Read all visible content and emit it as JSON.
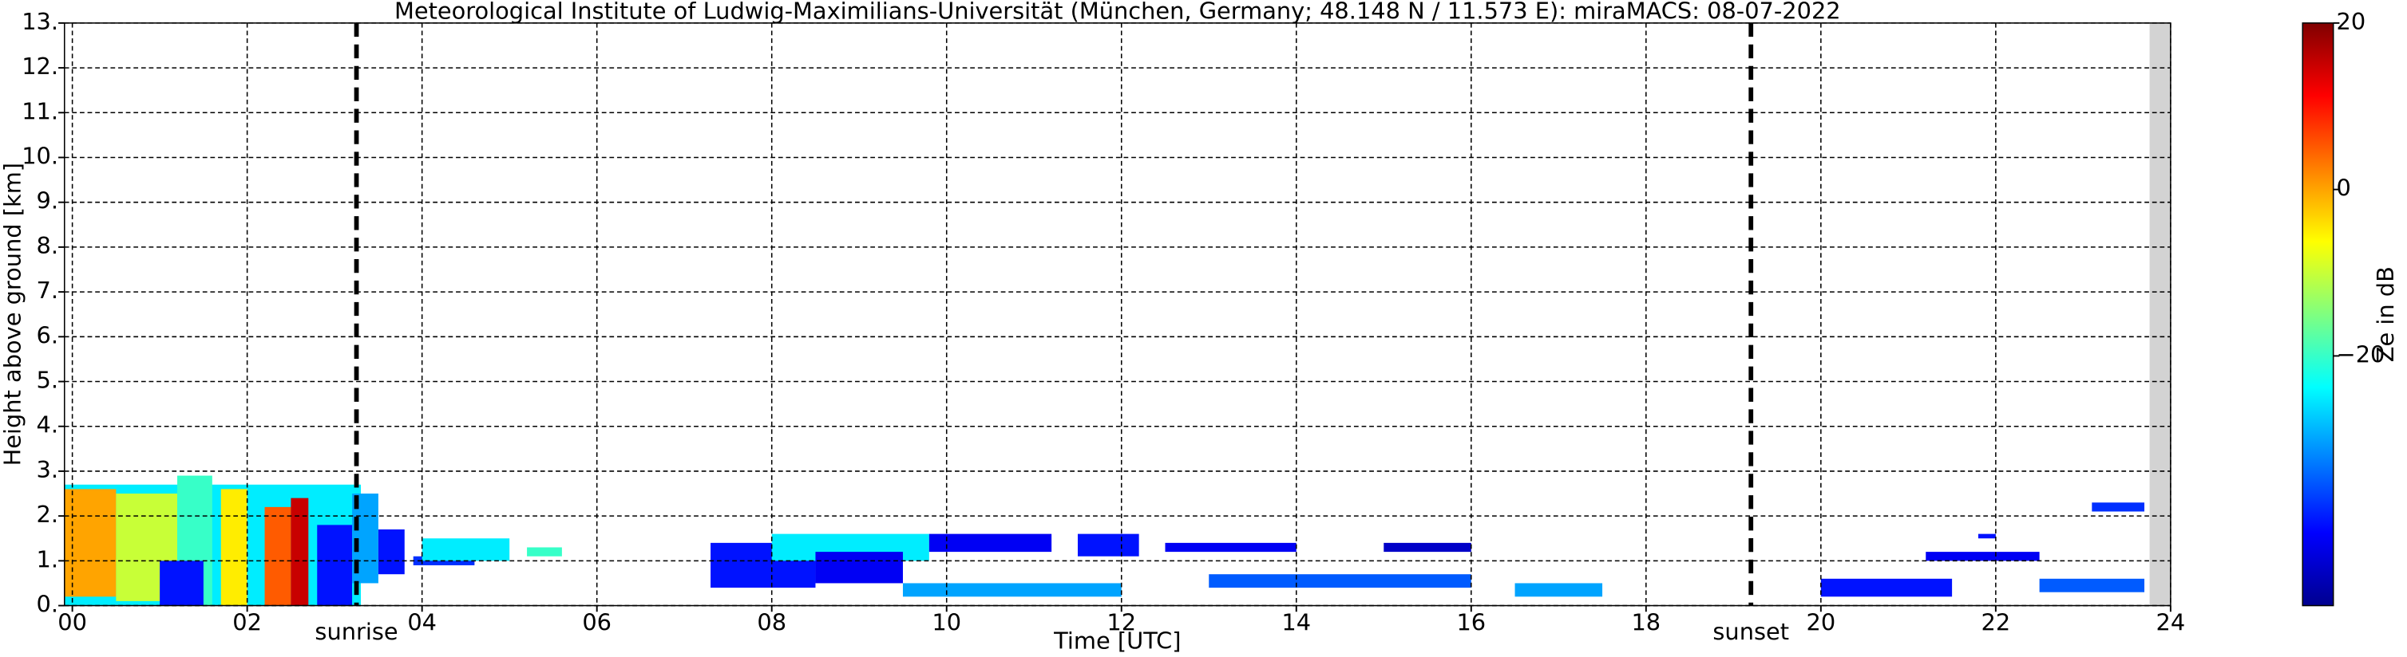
{
  "chart_data": {
    "type": "time-height",
    "title": "Meteorological Institute of Ludwig-Maximilians-Universität (München, Germany; 48.148 N / 11.573 E):    miraMACS: 08-07-2022",
    "x_label": "Time [UTC]",
    "y_label": "Height above ground [km]",
    "colorbar_label": "Ze in dB",
    "colormap": "jet",
    "grid": true,
    "xlim": [
      -0.09,
      24
    ],
    "ylim": [
      0,
      13
    ],
    "clim": [
      -50,
      20
    ],
    "xticks": [
      {
        "value": 0,
        "label": "00"
      },
      {
        "value": 2,
        "label": "02"
      },
      {
        "value": 4,
        "label": "04"
      },
      {
        "value": 6,
        "label": "06"
      },
      {
        "value": 8,
        "label": "08"
      },
      {
        "value": 10,
        "label": "10"
      },
      {
        "value": 12,
        "label": "12"
      },
      {
        "value": 14,
        "label": "14"
      },
      {
        "value": 16,
        "label": "16"
      },
      {
        "value": 18,
        "label": "18"
      },
      {
        "value": 20,
        "label": "20"
      },
      {
        "value": 22,
        "label": "22"
      },
      {
        "value": 24,
        "label": "24"
      }
    ],
    "yticks": [
      {
        "value": 0,
        "label": "0."
      },
      {
        "value": 1,
        "label": "1."
      },
      {
        "value": 2,
        "label": "2."
      },
      {
        "value": 3,
        "label": "3."
      },
      {
        "value": 4,
        "label": "4."
      },
      {
        "value": 5,
        "label": "5."
      },
      {
        "value": 6,
        "label": "6."
      },
      {
        "value": 7,
        "label": "7."
      },
      {
        "value": 8,
        "label": "8."
      },
      {
        "value": 9,
        "label": "9."
      },
      {
        "value": 10,
        "label": "10."
      },
      {
        "value": 11,
        "label": "11."
      },
      {
        "value": 12,
        "label": "12."
      },
      {
        "value": 13,
        "label": "13."
      }
    ],
    "cticks": [
      20,
      0,
      {
        "value": -20,
        "label": "−20"
      }
    ],
    "annotations": [
      {
        "label": "sunrise",
        "x": 3.25
      },
      {
        "label": "sunset",
        "x": 19.2
      }
    ],
    "no_data_x": [
      23.76,
      24
    ],
    "echoes": [
      {
        "t0": -0.09,
        "t1": 3.3,
        "h0": 0,
        "h1": 2.7,
        "ze": -25
      },
      {
        "t0": -0.09,
        "t1": 0.5,
        "h0": 0.2,
        "h1": 2.6,
        "ze": 0
      },
      {
        "t0": 0.5,
        "t1": 1.2,
        "h0": 0.1,
        "h1": 2.5,
        "ze": -10
      },
      {
        "t0": 1.2,
        "t1": 1.6,
        "h0": 0,
        "h1": 2.9,
        "ze": -20
      },
      {
        "t0": 1.0,
        "t1": 1.5,
        "h0": 0,
        "h1": 1.0,
        "ze": -40
      },
      {
        "t0": 1.7,
        "t1": 2.0,
        "h0": 0,
        "h1": 2.6,
        "ze": -5
      },
      {
        "t0": 2.2,
        "t1": 2.5,
        "h0": 0,
        "h1": 2.2,
        "ze": 5
      },
      {
        "t0": 2.5,
        "t1": 2.7,
        "h0": 0,
        "h1": 2.4,
        "ze": 15
      },
      {
        "t0": 2.8,
        "t1": 3.2,
        "h0": 0,
        "h1": 1.8,
        "ze": -40
      },
      {
        "t0": 3.2,
        "t1": 3.5,
        "h0": 0.5,
        "h1": 2.5,
        "ze": -30
      },
      {
        "t0": 3.5,
        "t1": 3.8,
        "h0": 0.7,
        "h1": 1.7,
        "ze": -40
      },
      {
        "t0": 3.9,
        "t1": 4.6,
        "h0": 0.9,
        "h1": 1.1,
        "ze": -38
      },
      {
        "t0": 4.0,
        "t1": 5.0,
        "h0": 1.0,
        "h1": 1.5,
        "ze": -25
      },
      {
        "t0": 5.2,
        "t1": 5.6,
        "h0": 1.1,
        "h1": 1.3,
        "ze": -20
      },
      {
        "t0": 7.3,
        "t1": 8.5,
        "h0": 0.4,
        "h1": 1.4,
        "ze": -40
      },
      {
        "t0": 8.0,
        "t1": 9.8,
        "h0": 1.0,
        "h1": 1.6,
        "ze": -25
      },
      {
        "t0": 8.5,
        "t1": 9.5,
        "h0": 0.5,
        "h1": 1.2,
        "ze": -42
      },
      {
        "t0": 9.8,
        "t1": 11.2,
        "h0": 1.2,
        "h1": 1.6,
        "ze": -42
      },
      {
        "t0": 11.5,
        "t1": 12.2,
        "h0": 1.1,
        "h1": 1.6,
        "ze": -40
      },
      {
        "t0": 9.5,
        "t1": 12.0,
        "h0": 0.2,
        "h1": 0.5,
        "ze": -30
      },
      {
        "t0": 12.5,
        "t1": 14.0,
        "h0": 1.2,
        "h1": 1.4,
        "ze": -42
      },
      {
        "t0": 13.0,
        "t1": 16.0,
        "h0": 0.4,
        "h1": 0.7,
        "ze": -35
      },
      {
        "t0": 15.0,
        "t1": 16.0,
        "h0": 1.2,
        "h1": 1.4,
        "ze": -45
      },
      {
        "t0": 16.5,
        "t1": 17.5,
        "h0": 0.2,
        "h1": 0.5,
        "ze": -30
      },
      {
        "t0": 20.0,
        "t1": 21.5,
        "h0": 0.2,
        "h1": 0.6,
        "ze": -40
      },
      {
        "t0": 21.2,
        "t1": 22.5,
        "h0": 1.0,
        "h1": 1.2,
        "ze": -42
      },
      {
        "t0": 21.8,
        "t1": 22.0,
        "h0": 1.5,
        "h1": 1.6,
        "ze": -40
      },
      {
        "t0": 22.5,
        "t1": 23.7,
        "h0": 0.3,
        "h1": 0.6,
        "ze": -35
      },
      {
        "t0": 23.1,
        "t1": 23.7,
        "h0": 2.1,
        "h1": 2.3,
        "ze": -38
      }
    ]
  }
}
